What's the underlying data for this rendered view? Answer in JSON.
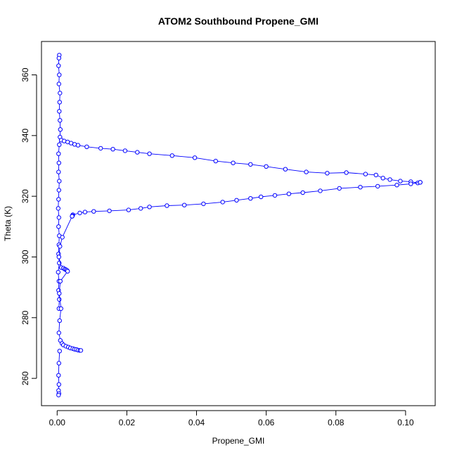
{
  "chart_data": {
    "type": "scatter",
    "title": "ATOM2 Southbound Propene_GMI",
    "xlabel": "Propene_GMI",
    "ylabel": "Theta (K)",
    "xlim": [
      -0.0045,
      0.1085
    ],
    "ylim": [
      251,
      371
    ],
    "xticks": [
      0.0,
      0.02,
      0.04,
      0.06,
      0.08,
      0.1
    ],
    "xtick_labels": [
      "0.00",
      "0.02",
      "0.04",
      "0.06",
      "0.08",
      "0.10"
    ],
    "yticks": [
      260,
      280,
      300,
      320,
      340,
      360
    ],
    "ytick_labels": [
      "260",
      "280",
      "300",
      "320",
      "340",
      "360"
    ],
    "grid": false,
    "legend": "none",
    "marker": "open-circle",
    "connected": true,
    "color": "#0000ff",
    "series": [
      {
        "x": [
          0.0006,
          0.0005,
          0.0004,
          0.0006,
          0.0005,
          0.0008,
          0.0007,
          0.0006,
          0.0008,
          0.0009,
          0.0008,
          0.0006,
          0.0004,
          0.0005,
          0.0004,
          0.0006,
          0.0005,
          0.0004,
          0.0003,
          0.0005,
          0.0004,
          0.0006,
          0.0005,
          0.0004,
          0.0006,
          0.0003,
          0.0005,
          0.0004,
          0.0006,
          0.0005
        ],
        "y": [
          366.5,
          365.5,
          363.0,
          360.0,
          357.0,
          354.0,
          351.0,
          348.0,
          345.0,
          342.0,
          339.5,
          337.0,
          334.0,
          331.0,
          328.0,
          325.0,
          322.0,
          319.0,
          316.0,
          313.0,
          310.0,
          307.0,
          304.0,
          301.0,
          298.0,
          295.0,
          292.0,
          289.0,
          286.0,
          283.0
        ]
      },
      {
        "x": [
          0.0012,
          0.002,
          0.003,
          0.004,
          0.005,
          0.006,
          0.0085,
          0.0125,
          0.016,
          0.0195,
          0.023,
          0.0265,
          0.033,
          0.0395,
          0.0455,
          0.0505,
          0.0555,
          0.06,
          0.0655,
          0.0715,
          0.0775,
          0.083,
          0.0885,
          0.0915,
          0.0935,
          0.0955,
          0.0985,
          0.1015,
          0.1035,
          0.1042
        ],
        "y": [
          338.5,
          338.2,
          337.9,
          337.5,
          337.1,
          336.8,
          336.3,
          335.8,
          335.5,
          335.0,
          334.5,
          334.0,
          333.4,
          332.7,
          331.6,
          331.0,
          330.5,
          329.8,
          328.9,
          328.0,
          327.6,
          327.8,
          327.3,
          327.0,
          326.0,
          325.5,
          325.0,
          324.8,
          324.4,
          324.6
        ]
      },
      {
        "x": [
          0.1042,
          0.1015,
          0.0975,
          0.092,
          0.087,
          0.081,
          0.0755,
          0.0705,
          0.0665,
          0.0625,
          0.0585,
          0.0555,
          0.0515,
          0.0475,
          0.042,
          0.0365,
          0.0315,
          0.0265,
          0.024,
          0.0205,
          0.015,
          0.0105,
          0.008,
          0.0065,
          0.0045,
          0.0044,
          0.0043
        ],
        "y": [
          324.6,
          324.1,
          323.7,
          323.3,
          323.0,
          322.6,
          321.8,
          321.2,
          320.8,
          320.3,
          319.8,
          319.3,
          318.7,
          318.1,
          317.5,
          317.1,
          316.9,
          316.5,
          316.0,
          315.5,
          315.2,
          315.0,
          314.8,
          314.5,
          313.9,
          313.6,
          313.4
        ]
      },
      {
        "x": [
          0.0043,
          0.0015,
          0.0008,
          0.0005,
          0.0012,
          0.0018,
          0.0022,
          0.0025,
          0.0028,
          0.003,
          0.0009,
          0.0006,
          0.0011,
          0.0007,
          0.0005,
          0.0009,
          0.0014,
          0.0018,
          0.0025,
          0.0032,
          0.0038,
          0.0045,
          0.005,
          0.0055,
          0.006,
          0.0065,
          0.0068
        ],
        "y": [
          313.4,
          306.5,
          303.5,
          300.0,
          296.5,
          296.3,
          296.0,
          295.8,
          295.6,
          295.3,
          292.0,
          288.0,
          283.0,
          279.0,
          275.0,
          272.5,
          271.5,
          271.0,
          270.6,
          270.3,
          270.0,
          269.8,
          269.6,
          269.5,
          269.3,
          269.2,
          269.2
        ]
      },
      {
        "x": [
          0.0007,
          0.0005,
          0.0004,
          0.0005,
          0.0004,
          0.0005,
          0.0004
        ],
        "y": [
          269.0,
          265.0,
          261.0,
          258.0,
          256.0,
          255.0,
          254.5
        ]
      }
    ]
  }
}
